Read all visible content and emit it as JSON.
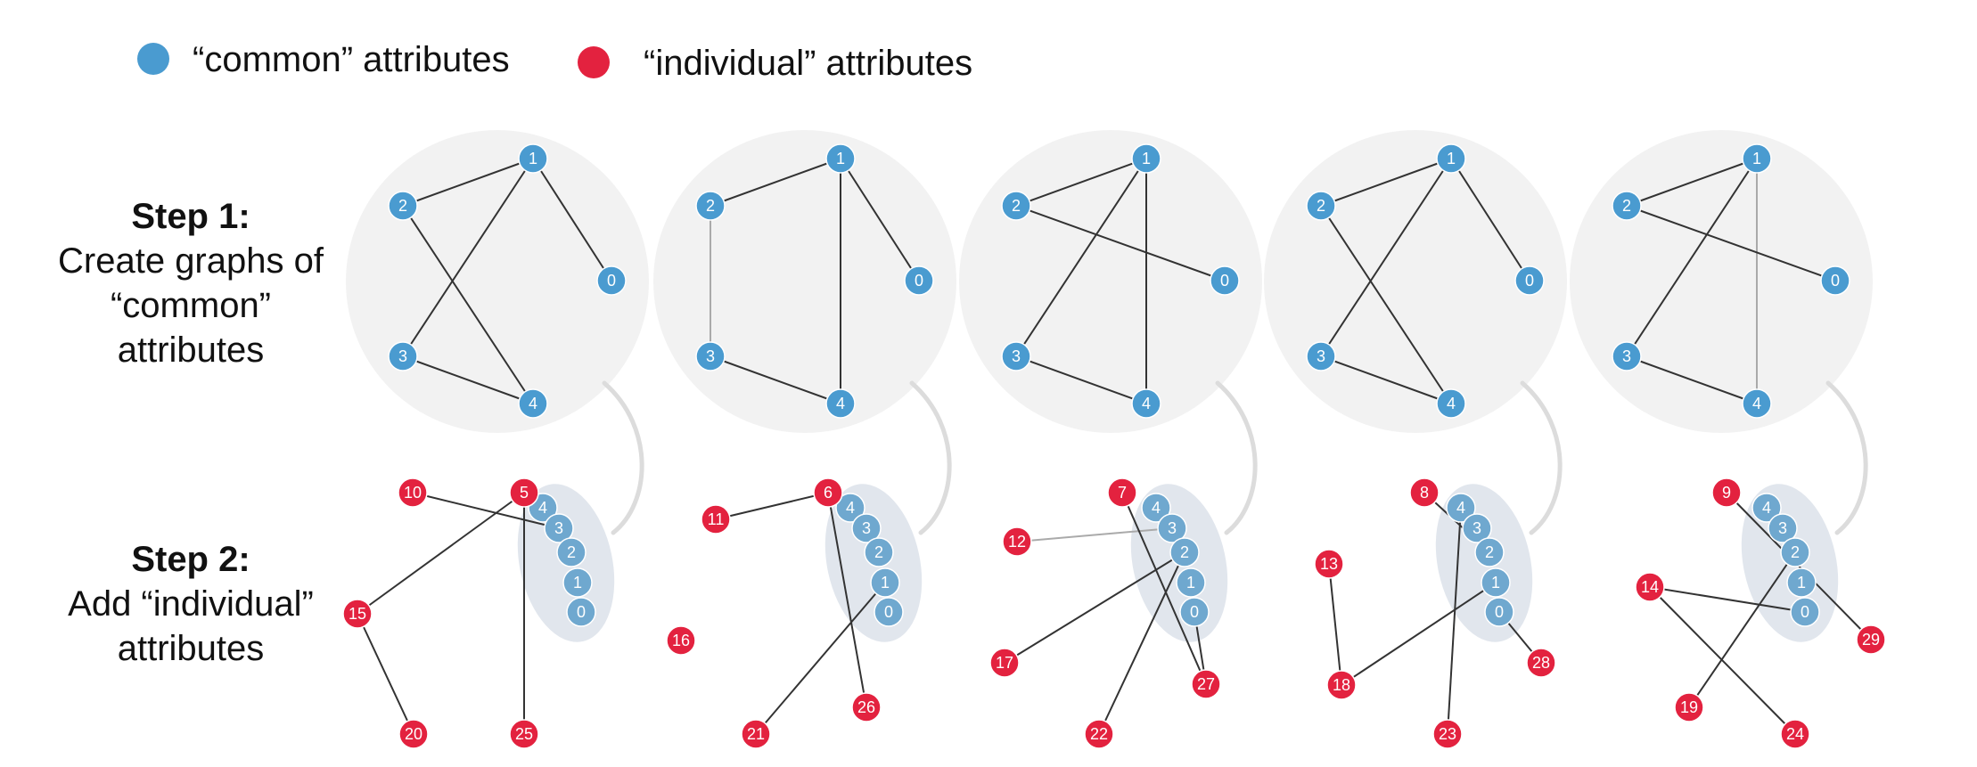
{
  "legend": {
    "common_label": "“common” attributes",
    "individual_label": "“individual” attributes",
    "common_color": "#4a9bd0",
    "individual_color": "#e3223f"
  },
  "steps": [
    {
      "title": "Step 1:",
      "lines": [
        "Create graphs of",
        "“common”",
        "attributes"
      ]
    },
    {
      "title": "Step 2:",
      "lines": [
        "Add “individual”",
        "attributes"
      ]
    }
  ],
  "colors": {
    "common_node": "#4a9bd0",
    "common_node_muted": "#6fa8cf",
    "individual_node": "#e3223f",
    "bubble": "#f2f2f2",
    "cluster": "#e1e6ed",
    "edge": "#333333",
    "edge_light": "#aaaaaa",
    "connector": "#dcdcdc"
  },
  "panels": [
    {
      "common_edges": [
        [
          "2",
          "1"
        ],
        [
          "1",
          "0"
        ],
        [
          "1",
          "3"
        ],
        [
          "2",
          "4"
        ],
        [
          "3",
          "4"
        ]
      ],
      "light_edges": [],
      "individual_nodes": [
        "10",
        "5",
        "15",
        "20",
        "25"
      ],
      "individual_edges": [
        [
          "10",
          "3"
        ],
        [
          "5",
          "15"
        ],
        [
          "15",
          "20"
        ],
        [
          "5",
          "25"
        ]
      ]
    },
    {
      "common_edges": [
        [
          "2",
          "1"
        ],
        [
          "1",
          "0"
        ],
        [
          "1",
          "4"
        ],
        [
          "3",
          "4"
        ]
      ],
      "light_edges": [
        [
          "2",
          "3"
        ]
      ],
      "individual_nodes": [
        "11",
        "6",
        "16",
        "21",
        "26"
      ],
      "individual_edges": [
        [
          "11",
          "6"
        ],
        [
          "6",
          "26"
        ],
        [
          "1",
          "21"
        ]
      ]
    },
    {
      "common_edges": [
        [
          "2",
          "1"
        ],
        [
          "2",
          "0"
        ],
        [
          "1",
          "3"
        ],
        [
          "1",
          "4"
        ],
        [
          "3",
          "4"
        ]
      ],
      "light_edges": [],
      "individual_nodes": [
        "7",
        "12",
        "17",
        "22",
        "27"
      ],
      "individual_edges": [
        [
          "7",
          "27"
        ],
        [
          "2",
          "17"
        ],
        [
          "2",
          "22"
        ],
        [
          "0",
          "27"
        ]
      ],
      "individual_light_edges": [
        [
          "12",
          "3"
        ]
      ]
    },
    {
      "common_edges": [
        [
          "2",
          "1"
        ],
        [
          "1",
          "0"
        ],
        [
          "1",
          "3"
        ],
        [
          "2",
          "4"
        ],
        [
          "3",
          "4"
        ]
      ],
      "light_edges": [],
      "individual_nodes": [
        "8",
        "13",
        "18",
        "23",
        "28"
      ],
      "individual_edges": [
        [
          "8",
          "2"
        ],
        [
          "13",
          "18"
        ],
        [
          "1",
          "18"
        ],
        [
          "4",
          "23"
        ],
        [
          "0",
          "28"
        ]
      ]
    },
    {
      "common_edges": [
        [
          "2",
          "1"
        ],
        [
          "2",
          "0"
        ],
        [
          "1",
          "3"
        ],
        [
          "3",
          "4"
        ]
      ],
      "light_edges": [
        [
          "1",
          "4"
        ]
      ],
      "individual_nodes": [
        "9",
        "14",
        "19",
        "24",
        "29"
      ],
      "individual_edges": [
        [
          "9",
          "29"
        ],
        [
          "14",
          "0"
        ],
        [
          "14",
          "24"
        ],
        [
          "2",
          "19"
        ]
      ]
    }
  ]
}
